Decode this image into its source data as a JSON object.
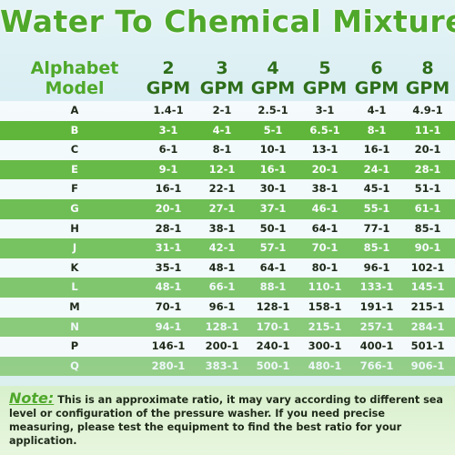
{
  "title": "Water To Chemical Mixture",
  "table": {
    "header": [
      [
        "Alphabet",
        "Model"
      ],
      [
        "2",
        "GPM"
      ],
      [
        "3",
        "GPM"
      ],
      [
        "4",
        "GPM"
      ],
      [
        "5",
        "GPM"
      ],
      [
        "6",
        "GPM"
      ],
      [
        "8",
        "GPM"
      ]
    ],
    "rows": [
      [
        "A",
        "1.4-1",
        "2-1",
        "2.5-1",
        "3-1",
        "4-1",
        "4.9-1"
      ],
      [
        "B",
        "3-1",
        "4-1",
        "5-1",
        "6.5-1",
        "8-1",
        "11-1"
      ],
      [
        "C",
        "6-1",
        "8-1",
        "10-1",
        "13-1",
        "16-1",
        "20-1"
      ],
      [
        "E",
        "9-1",
        "12-1",
        "16-1",
        "20-1",
        "24-1",
        "28-1"
      ],
      [
        "F",
        "16-1",
        "22-1",
        "30-1",
        "38-1",
        "45-1",
        "51-1"
      ],
      [
        "G",
        "20-1",
        "27-1",
        "37-1",
        "46-1",
        "55-1",
        "61-1"
      ],
      [
        "H",
        "28-1",
        "38-1",
        "50-1",
        "64-1",
        "77-1",
        "85-1"
      ],
      [
        "J",
        "31-1",
        "42-1",
        "57-1",
        "70-1",
        "85-1",
        "90-1"
      ],
      [
        "K",
        "35-1",
        "48-1",
        "64-1",
        "80-1",
        "96-1",
        "102-1"
      ],
      [
        "L",
        "48-1",
        "66-1",
        "88-1",
        "110-1",
        "133-1",
        "145-1"
      ],
      [
        "M",
        "70-1",
        "96-1",
        "128-1",
        "158-1",
        "191-1",
        "215-1"
      ],
      [
        "N",
        "94-1",
        "128-1",
        "170-1",
        "215-1",
        "257-1",
        "284-1"
      ],
      [
        "P",
        "146-1",
        "200-1",
        "240-1",
        "300-1",
        "400-1",
        "501-1"
      ],
      [
        "Q",
        "280-1",
        "383-1",
        "500-1",
        "480-1",
        "766-1",
        "906-1"
      ]
    ]
  },
  "note": {
    "label": "Note:",
    "text": "This is an approximate ratio, it may vary according to different sea level or configuration of the pressure washer. If you need precise measuring, please test the equipment to find the best ratio for your application."
  }
}
